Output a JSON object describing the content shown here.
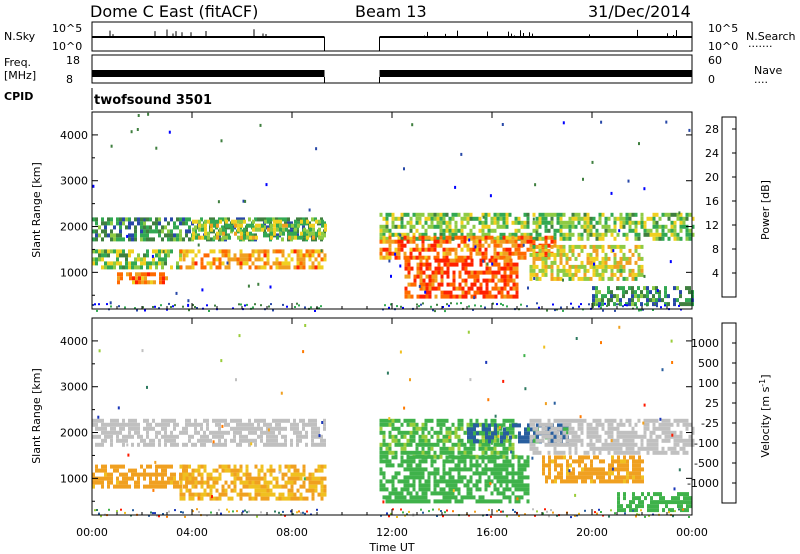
{
  "header": {
    "title": "Dome C East (fitACF)",
    "beam": "Beam 13",
    "date": "31/Dec/2014"
  },
  "strip_panels": {
    "nsky": {
      "label": "N.Sky",
      "ticks": [
        "10^5",
        "10^0"
      ],
      "right_label": "N.Search",
      "right_ticks": [
        "10^5",
        "10^0"
      ]
    },
    "freq": {
      "label_line1": "Freq.",
      "label_line2": "[MHz]",
      "ticks": [
        "18",
        "8"
      ],
      "right_label": "Nave",
      "right_ticks": [
        "60",
        "0"
      ]
    },
    "cpid": {
      "label": "CPID",
      "value": "twofsound 3501"
    }
  },
  "colors": {
    "power": [
      "#0000ff",
      "#2848a8",
      "#3f7f3f",
      "#32a852",
      "#8ecb44",
      "#f0d020",
      "#f0a020",
      "#ff6a00",
      "#ff2000"
    ],
    "velocity": [
      "#1a36b8",
      "#285e9e",
      "#2e7a60",
      "#3fb24a",
      "#9acd3a",
      "#c0c0c0",
      "#f0c020",
      "#f0a020",
      "#ff7a00",
      "#ff1a00"
    ]
  },
  "chart_data": [
    {
      "type": "heatmap",
      "title": "",
      "xlabel": "Time UT",
      "ylabel": "Slant Range [km]",
      "x_ticks": [
        "00:00",
        "04:00",
        "08:00",
        "12:00",
        "16:00",
        "20:00",
        "00:00"
      ],
      "x_range_hours": [
        0,
        24
      ],
      "y_ticks": [
        1000,
        2000,
        3000,
        4000
      ],
      "ylim": [
        200,
        4500
      ],
      "data_gap_hours": [
        9.3,
        11.5
      ],
      "colorbar": {
        "label": "Power [dB]",
        "ticks": [
          4,
          8,
          12,
          16,
          20,
          24,
          28
        ],
        "range": [
          0,
          30
        ]
      },
      "bands": [
        {
          "t0": 0.0,
          "t1": 9.3,
          "r0": 1700,
          "r1": 2200,
          "value": 10
        },
        {
          "t0": 0.0,
          "t1": 3.5,
          "r0": 1100,
          "r1": 1500,
          "value": 14
        },
        {
          "t0": 1.0,
          "t1": 3.0,
          "r0": 800,
          "r1": 1000,
          "value": 24
        },
        {
          "t0": 3.5,
          "t1": 9.3,
          "r0": 1150,
          "r1": 1500,
          "value": 22
        },
        {
          "t0": 4.0,
          "t1": 9.3,
          "r0": 1800,
          "r1": 2150,
          "value": 16
        },
        {
          "t0": 11.5,
          "t1": 24.0,
          "r0": 1700,
          "r1": 2300,
          "value": 14
        },
        {
          "t0": 11.5,
          "t1": 18.5,
          "r0": 1300,
          "r1": 1800,
          "value": 24
        },
        {
          "t0": 12.5,
          "t1": 17.0,
          "r0": 500,
          "r1": 1300,
          "value": 27
        },
        {
          "t0": 17.5,
          "t1": 22.0,
          "r0": 900,
          "r1": 1600,
          "value": 18
        },
        {
          "t0": 20.0,
          "t1": 24.0,
          "r0": 300,
          "r1": 700,
          "value": 10
        }
      ]
    },
    {
      "type": "heatmap",
      "title": "",
      "xlabel": "Time UT",
      "ylabel": "Slant Range [km]",
      "x_ticks": [
        "00:00",
        "04:00",
        "08:00",
        "12:00",
        "16:00",
        "20:00",
        "00:00"
      ],
      "x_range_hours": [
        0,
        24
      ],
      "y_ticks": [
        1000,
        2000,
        3000,
        4000
      ],
      "ylim": [
        200,
        4500
      ],
      "data_gap_hours": [
        9.3,
        11.5
      ],
      "colorbar": {
        "label": "Velocity [m s^-1]",
        "ticks": [
          1000,
          500,
          100,
          25,
          -25,
          -100,
          -500,
          -1000
        ],
        "range": [
          -1000,
          1000
        ]
      },
      "bands": [
        {
          "t0": 0.0,
          "t1": 9.3,
          "r0": 1700,
          "r1": 2300,
          "value": 0
        },
        {
          "t0": 0.0,
          "t1": 4.0,
          "r0": 800,
          "r1": 1300,
          "value": -150
        },
        {
          "t0": 3.5,
          "t1": 9.3,
          "r0": 600,
          "r1": 1300,
          "value": -100
        },
        {
          "t0": 11.5,
          "t1": 17.0,
          "r0": 1500,
          "r1": 2300,
          "value": 120
        },
        {
          "t0": 11.5,
          "t1": 17.5,
          "r0": 500,
          "r1": 1500,
          "value": 300
        },
        {
          "t0": 15.0,
          "t1": 19.0,
          "r0": 1800,
          "r1": 2200,
          "value": 700
        },
        {
          "t0": 17.5,
          "t1": 24.0,
          "r0": 1600,
          "r1": 2300,
          "value": 0
        },
        {
          "t0": 18.0,
          "t1": 22.0,
          "r0": 900,
          "r1": 1500,
          "value": -150
        },
        {
          "t0": 21.0,
          "t1": 24.0,
          "r0": 300,
          "r1": 700,
          "value": 200
        }
      ]
    }
  ]
}
